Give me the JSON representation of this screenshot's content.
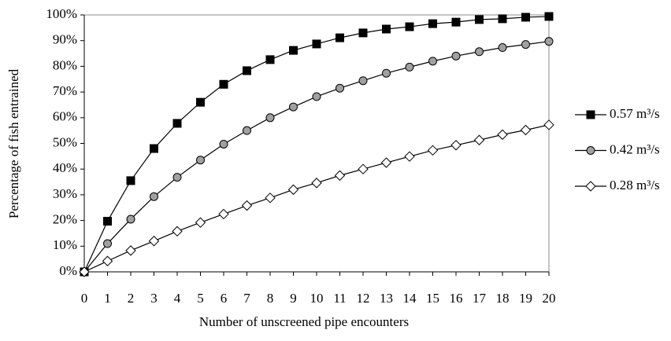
{
  "chart_data": {
    "type": "line",
    "x_label": "Number of unscreened pipe encounters",
    "y_label": "Percentage of fish entrained",
    "x": [
      0,
      1,
      2,
      3,
      4,
      5,
      6,
      7,
      8,
      9,
      10,
      11,
      12,
      13,
      14,
      15,
      16,
      17,
      18,
      19,
      20
    ],
    "xlim": [
      0,
      20
    ],
    "xticks": [
      0,
      1,
      2,
      3,
      4,
      5,
      6,
      7,
      8,
      9,
      10,
      11,
      12,
      13,
      14,
      15,
      16,
      17,
      18,
      19,
      20
    ],
    "ylim": [
      0,
      100
    ],
    "yticks": [
      {
        "value": 0,
        "label": "0%"
      },
      {
        "value": 10,
        "label": "10%"
      },
      {
        "value": 20,
        "label": "20%"
      },
      {
        "value": 30,
        "label": "30%"
      },
      {
        "value": 40,
        "label": "40%"
      },
      {
        "value": 50,
        "label": "50%"
      },
      {
        "value": 60,
        "label": "60%"
      },
      {
        "value": 70,
        "label": "70%"
      },
      {
        "value": 80,
        "label": "80%"
      },
      {
        "value": 90,
        "label": "90%"
      },
      {
        "value": 100,
        "label": "100%"
      }
    ],
    "legend": "right",
    "series": [
      {
        "name": "0.57 m³/s",
        "color": "#000000",
        "marker": "square",
        "marker_fill": "#000000",
        "values": [
          0,
          19.7,
          35.5,
          48,
          57.8,
          66,
          73,
          78.3,
          82.6,
          86.2,
          88.7,
          91.1,
          93,
          94.5,
          95.4,
          96.6,
          97.2,
          98.2,
          98.5,
          99.1,
          99.4
        ]
      },
      {
        "name": "0.42 m³/s",
        "color": "#000000",
        "marker": "circle",
        "marker_fill": "#a0a0a0",
        "values": [
          0,
          11,
          20.5,
          29.3,
          36.8,
          43.5,
          49.7,
          55,
          60,
          64.2,
          68.2,
          71.5,
          74.4,
          77.3,
          79.7,
          82,
          84,
          85.7,
          87.3,
          88.5,
          89.7
        ]
      },
      {
        "name": "0.28 m³/s",
        "color": "#000000",
        "marker": "diamond",
        "marker_fill": "#ffffff",
        "values": [
          0,
          4.2,
          8.3,
          12,
          15.8,
          19.2,
          22.5,
          25.8,
          28.8,
          32,
          34.6,
          37.5,
          40,
          42.5,
          44.9,
          47.3,
          49.3,
          51.3,
          53.4,
          55.2,
          57.2
        ]
      }
    ]
  }
}
